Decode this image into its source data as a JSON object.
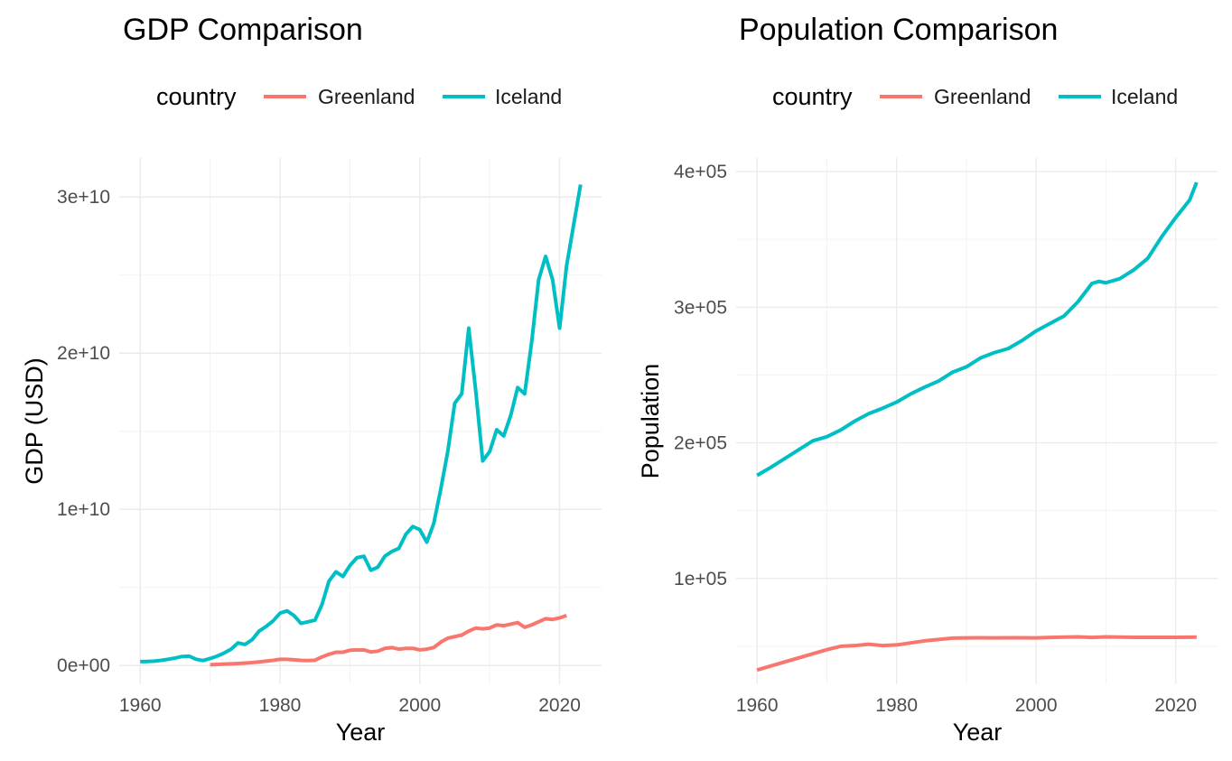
{
  "colors": {
    "greenland": "#F8766D",
    "iceland": "#00BFC4"
  },
  "chart_data": [
    {
      "type": "line",
      "title": "GDP Comparison",
      "xlabel": "Year",
      "ylabel": "GDP (USD)",
      "legend": {
        "title": "country",
        "position": "top",
        "entries": [
          "Greenland",
          "Iceland"
        ]
      },
      "grid": true,
      "xlim": [
        1957,
        2026
      ],
      "ylim": [
        -1200000000.0,
        32500000000.0
      ],
      "x_ticks": [
        1960,
        1980,
        2000,
        2020
      ],
      "x_tick_labels": [
        "1960",
        "1980",
        "2000",
        "2020"
      ],
      "y_ticks": [
        0,
        10000000000.0,
        20000000000.0,
        30000000000.0
      ],
      "y_tick_labels": [
        "0e+00",
        "1e+10",
        "2e+10",
        "3e+10"
      ],
      "series": [
        {
          "name": "Greenland",
          "color": "#F8766D",
          "x": [
            1970,
            1971,
            1972,
            1973,
            1974,
            1975,
            1976,
            1977,
            1978,
            1979,
            1980,
            1981,
            1982,
            1983,
            1984,
            1985,
            1986,
            1987,
            1988,
            1989,
            1990,
            1991,
            1992,
            1993,
            1994,
            1995,
            1996,
            1997,
            1998,
            1999,
            2000,
            2001,
            2002,
            2003,
            2004,
            2005,
            2006,
            2007,
            2008,
            2009,
            2010,
            2011,
            2012,
            2013,
            2014,
            2015,
            2016,
            2017,
            2018,
            2019,
            2020,
            2021
          ],
          "y": [
            50000000.0,
            70000000.0,
            90000000.0,
            110000000.0,
            130000000.0,
            160000000.0,
            190000000.0,
            230000000.0,
            280000000.0,
            330000000.0,
            400000000.0,
            400000000.0,
            370000000.0,
            330000000.0,
            320000000.0,
            340000000.0,
            550000000.0,
            720000000.0,
            850000000.0,
            850000000.0,
            980000000.0,
            1000000000.0,
            1000000000.0,
            870000000.0,
            920000000.0,
            1100000000.0,
            1150000000.0,
            1050000000.0,
            1100000000.0,
            1100000000.0,
            1000000000.0,
            1050000000.0,
            1150000000.0,
            1500000000.0,
            1750000000.0,
            1850000000.0,
            1950000000.0,
            2200000000.0,
            2400000000.0,
            2350000000.0,
            2400000000.0,
            2600000000.0,
            2550000000.0,
            2650000000.0,
            2750000000.0,
            2450000000.0,
            2600000000.0,
            2800000000.0,
            3000000000.0,
            2950000000.0,
            3050000000.0,
            3200000000.0
          ]
        },
        {
          "name": "Iceland",
          "color": "#00BFC4",
          "x": [
            1960,
            1961,
            1962,
            1963,
            1964,
            1965,
            1966,
            1967,
            1968,
            1969,
            1970,
            1971,
            1972,
            1973,
            1974,
            1975,
            1976,
            1977,
            1978,
            1979,
            1980,
            1981,
            1982,
            1983,
            1984,
            1985,
            1986,
            1987,
            1988,
            1989,
            1990,
            1991,
            1992,
            1993,
            1994,
            1995,
            1996,
            1997,
            1998,
            1999,
            2000,
            2001,
            2002,
            2003,
            2004,
            2005,
            2006,
            2007,
            2008,
            2009,
            2010,
            2011,
            2012,
            2013,
            2014,
            2015,
            2016,
            2017,
            2018,
            2019,
            2020,
            2021,
            2022,
            2023
          ],
          "y": [
            250000000.0,
            260000000.0,
            280000000.0,
            330000000.0,
            400000000.0,
            480000000.0,
            580000000.0,
            600000000.0,
            400000000.0,
            320000000.0,
            450000000.0,
            600000000.0,
            800000000.0,
            1050000000.0,
            1450000000.0,
            1350000000.0,
            1650000000.0,
            2200000000.0,
            2500000000.0,
            2850000000.0,
            3350000000.0,
            3500000000.0,
            3200000000.0,
            2700000000.0,
            2800000000.0,
            2900000000.0,
            3900000000.0,
            5400000000.0,
            6000000000.0,
            5700000000.0,
            6400000000.0,
            6900000000.0,
            7000000000.0,
            6100000000.0,
            6300000000.0,
            7000000000.0,
            7300000000.0,
            7500000000.0,
            8400000000.0,
            8900000000.0,
            8700000000.0,
            7900000000.0,
            9100000000.0,
            11300000000.0,
            13700000000.0,
            16800000000.0,
            17400000000.0,
            21600000000.0,
            17600000000.0,
            13100000000.0,
            13700000000.0,
            15100000000.0,
            14700000000.0,
            16000000000.0,
            17800000000.0,
            17400000000.0,
            20700000000.0,
            24700000000.0,
            26200000000.0,
            24700000000.0,
            21600000000.0,
            25600000000.0,
            28200000000.0,
            30800000000.0
          ]
        }
      ]
    },
    {
      "type": "line",
      "title": "Population Comparison",
      "xlabel": "Year",
      "ylabel": "Population",
      "legend": {
        "title": "country",
        "position": "top",
        "entries": [
          "Greenland",
          "Iceland"
        ]
      },
      "grid": true,
      "xlim": [
        1957,
        2026
      ],
      "ylim": [
        22000,
        410000
      ],
      "x_ticks": [
        1960,
        1980,
        2000,
        2020
      ],
      "x_tick_labels": [
        "1960",
        "1980",
        "2000",
        "2020"
      ],
      "y_ticks": [
        100000,
        200000,
        300000,
        400000
      ],
      "y_tick_labels": [
        "1e+05",
        "2e+05",
        "3e+05",
        "4e+05"
      ],
      "series": [
        {
          "name": "Greenland",
          "color": "#F8766D",
          "x": [
            1960,
            1962,
            1964,
            1966,
            1968,
            1970,
            1972,
            1974,
            1976,
            1978,
            1980,
            1982,
            1984,
            1986,
            1988,
            1990,
            1992,
            1994,
            1996,
            1998,
            2000,
            2002,
            2004,
            2006,
            2008,
            2010,
            2012,
            2014,
            2016,
            2018,
            2020,
            2022,
            2023
          ],
          "y": [
            32500,
            35500,
            38500,
            41500,
            44500,
            47500,
            50000,
            50500,
            51500,
            50500,
            51000,
            52500,
            54000,
            55000,
            56000,
            56200,
            56300,
            56200,
            56300,
            56300,
            56200,
            56500,
            56800,
            56900,
            56500,
            56900,
            56800,
            56600,
            56600,
            56600,
            56600,
            56700,
            56800
          ]
        },
        {
          "name": "Iceland",
          "color": "#00BFC4",
          "x": [
            1960,
            1962,
            1964,
            1966,
            1968,
            1970,
            1972,
            1974,
            1976,
            1978,
            1980,
            1982,
            1984,
            1986,
            1988,
            1990,
            1992,
            1994,
            1996,
            1998,
            2000,
            2002,
            2004,
            2006,
            2008,
            2009,
            2010,
            2012,
            2014,
            2016,
            2018,
            2020,
            2022,
            2023
          ],
          "y": [
            176000,
            182000,
            188500,
            195000,
            201500,
            204500,
            209500,
            216000,
            221500,
            225500,
            230000,
            236000,
            241000,
            245500,
            252000,
            256000,
            262500,
            266500,
            269500,
            275500,
            282500,
            288000,
            293500,
            304000,
            317500,
            319000,
            318000,
            321000,
            327500,
            336000,
            352000,
            366000,
            379000,
            392000
          ]
        }
      ]
    }
  ]
}
